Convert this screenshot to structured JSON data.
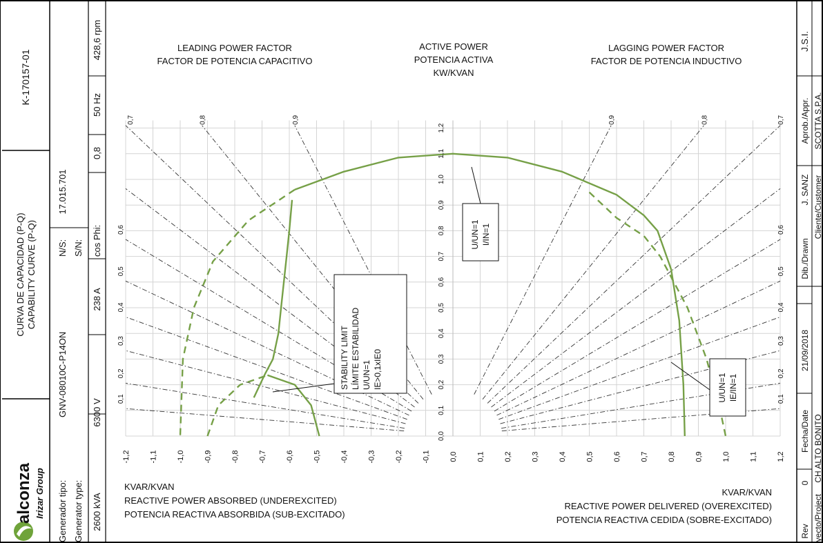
{
  "title_block": {
    "drawing_number": "K-170157-01",
    "title_es": "CURVA DE CAPACIDAD (P-Q)",
    "title_en": "CAPABILITY CURVE (P-Q)",
    "logo_text": "alconza",
    "logo_sub": "Irizar Group",
    "generator_tipo_label": "Generador tipo:",
    "generator_type_label": "Generator type:",
    "generator_type_value": "GNV-08010C-P14ON",
    "ns_label": "N/S:",
    "sn_label": "S/N:",
    "serial_value": "17.015.701",
    "power": "2600 kVA",
    "voltage": "6300 V",
    "current": "238 A",
    "cosphi_label": "cos Phi:",
    "cosphi_value": "0,8",
    "frequency": "50 Hz",
    "speed": "428,6 rpm",
    "right_block": {
      "rev_label": "Rev",
      "rev_value": "0",
      "fecha_label": "Fecha/Date",
      "fecha_value": "21/09/2018",
      "dib_label": "Dib./Drawn",
      "dib_value": "J. SANZ",
      "aprob_label": "Aprob./Appr.",
      "aprob_value": "J.S.I.",
      "proyecto_label": "Proyecto/Project",
      "proyecto_value": "CH ALTO BONITO",
      "cliente_label": "Cliente/Customer",
      "cliente_value": "SCOTTA S.P.A."
    }
  },
  "chart": {
    "leading_title_1": "LEADING POWER FACTOR",
    "leading_title_2": "FACTOR DE POTENCIA CAPACITIVO",
    "active_title_1": "ACTIVE POWER",
    "active_title_2": "POTENCIA ACTIVA",
    "active_title_3": "KW/KVAN",
    "lagging_title_1": "LAGGING POWER FACTOR",
    "lagging_title_2": "FACTOR DE POTENCIA INDUCTIVO",
    "left_axis_1": "KVAR/KVAN",
    "left_axis_2": "REACTIVE POWER ABSORBED (UNDEREXCITED)",
    "left_axis_3": "POTENCIA REACTIVA ABSORBIDA (SUB-EXCITADO)",
    "right_axis_1": "KVAR/KVAN",
    "right_axis_2": "REACTIVE POWER DELIVERED (OVEREXCITED)",
    "right_axis_3": "POTENCIA REACTIVA CEDIDA (SOBRE-EXCITADO)",
    "box_center": [
      "U/UN=1",
      "I/IN=1"
    ],
    "box_right": [
      "U/UN=1",
      "IE/IN=1"
    ],
    "box_stability": [
      "STABILITY LIMIT",
      "LÍMITE ESTABILIDAD",
      "U/UN=1",
      "IE>0,1xIE0"
    ],
    "curve_color": "#76a047"
  },
  "chart_data": {
    "type": "line",
    "x_ticks": [
      "-1,2",
      "-1,1",
      "-1,0",
      "-0,9",
      "-0,8",
      "-0,7",
      "-0,6",
      "-0,5",
      "-0,4",
      "-0,3",
      "-0,2",
      "-0,1",
      "0,0",
      "0,1",
      "0,2",
      "0,3",
      "0,4",
      "0,5",
      "0,6",
      "0,7",
      "0,8",
      "0,9",
      "1,0",
      "1,1",
      "1,2"
    ],
    "y_ticks": [
      "0,0",
      "0,1",
      "0,2",
      "0,3",
      "0,4",
      "0,5",
      "0,6",
      "0,7",
      "0,8",
      "0,9",
      "1,0",
      "1,1",
      "1,2"
    ],
    "xlim": [
      -1.2,
      1.2
    ],
    "ylim": [
      0,
      1.2
    ],
    "pf_labels_left": [
      "0,7",
      "0,8",
      "0,9"
    ],
    "pf_labels_right": [
      "0,9",
      "0,8",
      "0,7"
    ],
    "pf_side_labels": [
      "0,1",
      "0,2",
      "0,3",
      "0,4",
      "0,5",
      "0,6"
    ],
    "pf_ray_endpoints": [
      {
        "x": -1.2,
        "y": 1.21
      },
      {
        "x": -0.92,
        "y": 1.21
      },
      {
        "x": -0.58,
        "y": 1.21
      },
      {
        "x": -1.2,
        "y": 0.964
      },
      {
        "x": -1.2,
        "y": 0.766
      },
      {
        "x": -1.2,
        "y": 0.604
      },
      {
        "x": -1.2,
        "y": 0.464
      },
      {
        "x": -1.2,
        "y": 0.333
      },
      {
        "x": -1.2,
        "y": 0.206
      },
      {
        "x": -1.2,
        "y": 0.107
      },
      {
        "x": 1.2,
        "y": 1.21
      },
      {
        "x": 0.92,
        "y": 1.21
      },
      {
        "x": 0.58,
        "y": 1.21
      },
      {
        "x": 1.2,
        "y": 0.964
      },
      {
        "x": 1.2,
        "y": 0.766
      },
      {
        "x": 1.2,
        "y": 0.604
      },
      {
        "x": 1.2,
        "y": 0.464
      },
      {
        "x": 1.2,
        "y": 0.333
      },
      {
        "x": 1.2,
        "y": 0.206
      },
      {
        "x": 1.2,
        "y": 0.107
      }
    ],
    "series": [
      {
        "style": "solid",
        "values": [
          [
            -0.58,
            0.96
          ],
          [
            -0.4,
            1.03
          ],
          [
            -0.2,
            1.085
          ],
          [
            0.0,
            1.1
          ],
          [
            0.2,
            1.085
          ],
          [
            0.4,
            1.03
          ],
          [
            0.6,
            0.94
          ],
          [
            0.7,
            0.86
          ],
          [
            0.75,
            0.8
          ],
          [
            0.8,
            0.65
          ],
          [
            0.83,
            0.45
          ],
          [
            0.845,
            0.2
          ],
          [
            0.85,
            0.0
          ]
        ]
      },
      {
        "style": "dashed",
        "values": [
          [
            -0.58,
            0.96
          ],
          [
            -0.75,
            0.84
          ],
          [
            -0.88,
            0.68
          ],
          [
            -0.95,
            0.5
          ],
          [
            -0.99,
            0.3
          ],
          [
            -1.0,
            0.0
          ]
        ]
      },
      {
        "style": "solid",
        "values": [
          [
            -0.73,
            0.15
          ],
          [
            -0.69,
            0.24
          ],
          [
            -0.66,
            0.3
          ],
          [
            -0.64,
            0.4
          ],
          [
            -0.63,
            0.5
          ],
          [
            -0.62,
            0.6
          ],
          [
            -0.61,
            0.7
          ],
          [
            -0.6,
            0.8
          ],
          [
            -0.59,
            0.92
          ]
        ]
      },
      {
        "style": "dashed",
        "values": [
          [
            -0.9,
            0.0
          ],
          [
            -0.86,
            0.12
          ],
          [
            -0.78,
            0.2
          ],
          [
            -0.68,
            0.237
          ]
        ]
      },
      {
        "style": "solid",
        "values": [
          [
            -0.68,
            0.237
          ],
          [
            -0.58,
            0.2
          ],
          [
            -0.52,
            0.12
          ],
          [
            -0.49,
            0.0
          ]
        ]
      },
      {
        "style": "dashed",
        "values": [
          [
            0.5,
            0.95
          ],
          [
            0.55,
            0.9
          ],
          [
            0.6,
            0.85
          ],
          [
            0.7,
            0.78
          ],
          [
            0.76,
            0.7
          ],
          [
            0.86,
            0.5
          ],
          [
            0.93,
            0.3
          ],
          [
            0.98,
            0.1
          ],
          [
            1.0,
            0.0
          ]
        ]
      }
    ]
  }
}
